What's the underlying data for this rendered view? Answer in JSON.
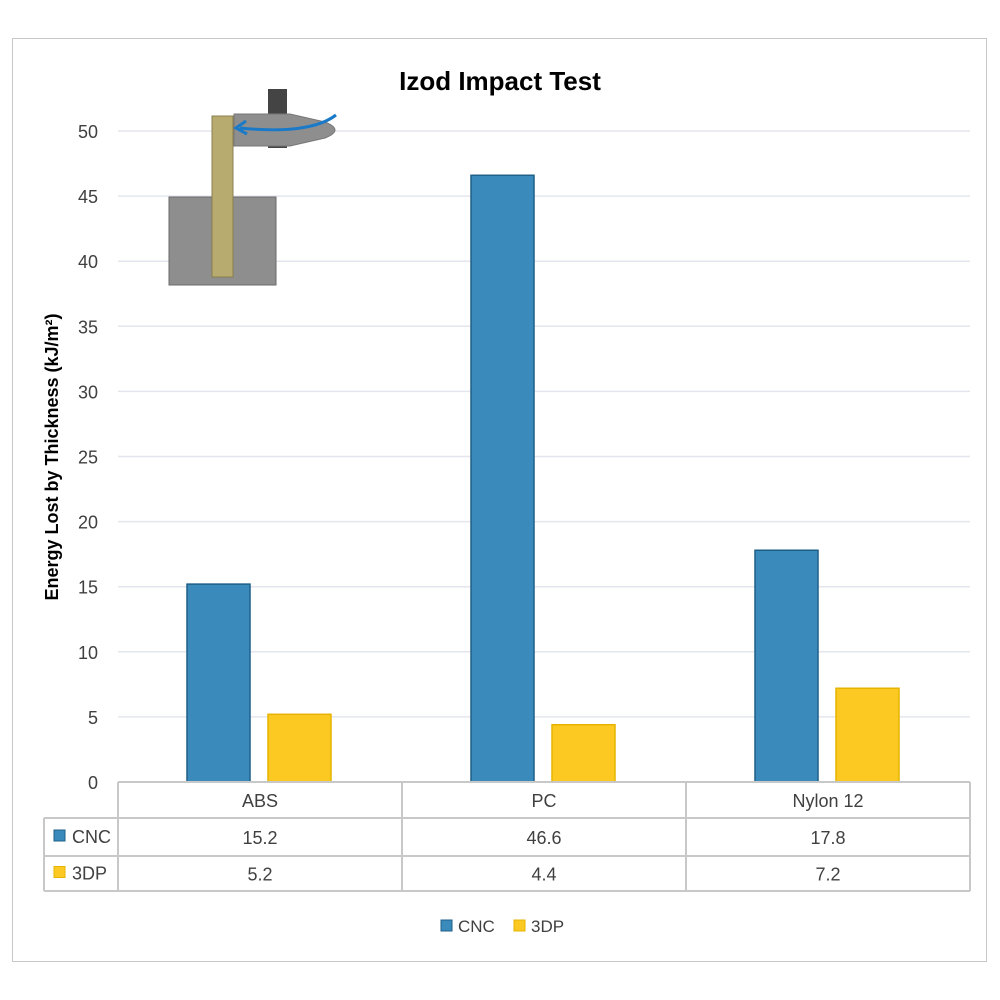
{
  "chart_data": {
    "type": "bar",
    "title": "Izod Impact Test",
    "ylabel": "Energy Lost by Thickness (kJ/m²)",
    "xlabel": "",
    "ylim": [
      0,
      50
    ],
    "yticks": [
      "0",
      "5",
      "10",
      "15",
      "20",
      "25",
      "30",
      "35",
      "40",
      "45",
      "50"
    ],
    "grid": true,
    "legend": "bottom",
    "categories": [
      "ABS",
      "PC",
      "Nylon 12"
    ],
    "series": [
      {
        "name": "CNC",
        "values": [
          15.2,
          46.6,
          17.8
        ],
        "color": "#3a8bbb",
        "value_labels": [
          "15.2",
          "46.6",
          "17.8"
        ]
      },
      {
        "name": "3DP",
        "values": [
          5.2,
          4.4,
          7.2
        ],
        "color": "#fcc923",
        "value_labels": [
          "5.2",
          "4.4",
          "7.2"
        ]
      }
    ],
    "data_table": true
  }
}
